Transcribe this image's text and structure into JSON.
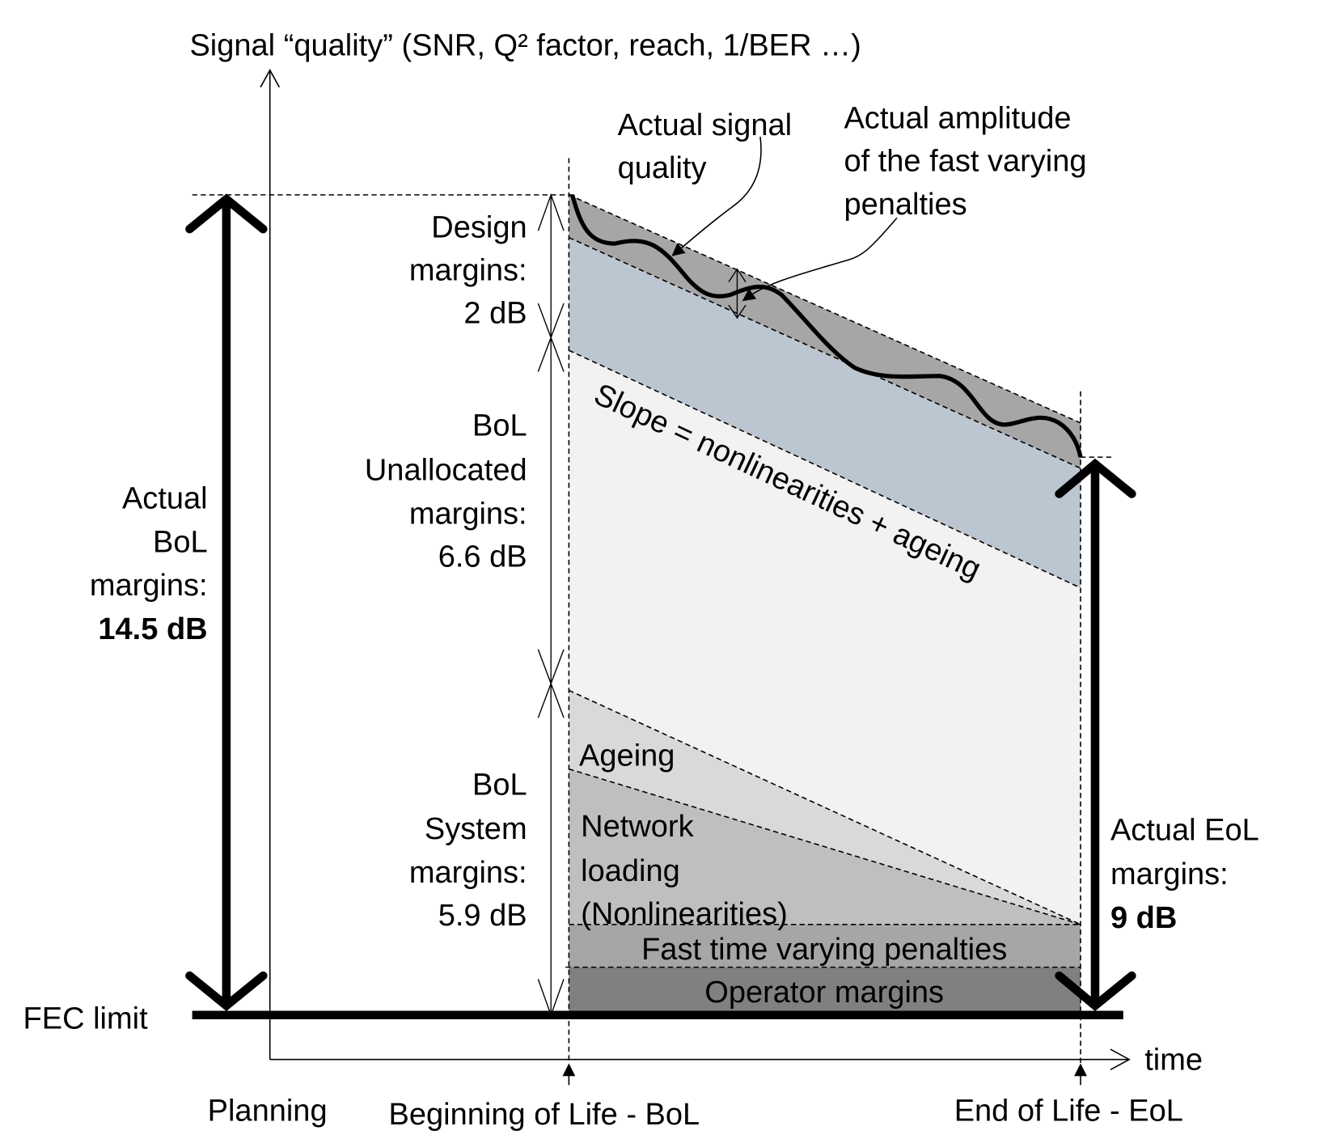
{
  "axis": {
    "y_title": "Signal “quality” (SNR, Q² factor, reach, 1/BER …)",
    "x_title": "time"
  },
  "fec_limit": "FEC limit",
  "time_labels": {
    "planning": "Planning",
    "bol": "Beginning of Life - BoL",
    "eol": "End of Life - EoL"
  },
  "actual_bol": {
    "lines": [
      "Actual",
      "BoL",
      "margins:"
    ],
    "value": "14.5 dB"
  },
  "actual_eol": {
    "lines": [
      "Actual EoL",
      "margins:"
    ],
    "value": "9 dB"
  },
  "design_margins": {
    "lines": [
      "Design",
      "margins:",
      "2 dB"
    ]
  },
  "unallocated_margins": {
    "lines": [
      "BoL",
      "Unallocated",
      "margins:",
      "6.6 dB"
    ]
  },
  "system_margins": {
    "lines": [
      "BoL",
      "System",
      "margins:",
      "5.9 dB"
    ]
  },
  "annotations": {
    "signal_quality": [
      "Actual signal",
      "quality"
    ],
    "amplitude": [
      "Actual amplitude",
      "of the fast varying",
      "penalties"
    ],
    "slope": "Slope = nonlinearities + ageing"
  },
  "regions": {
    "ageing": "Ageing",
    "network": [
      "Network",
      "loading",
      "(Nonlinearities)"
    ],
    "fast": "Fast time varying penalties",
    "operator": "Operator margins"
  },
  "colors": {
    "design_band": "#a6a6a6",
    "unallocated_band": "#bcc6d1",
    "light": "#f2f2f2",
    "ageing": "#d9d9d9",
    "network": "#bfbfbf",
    "fast": "#a6a6a6",
    "operator": "#808080"
  }
}
